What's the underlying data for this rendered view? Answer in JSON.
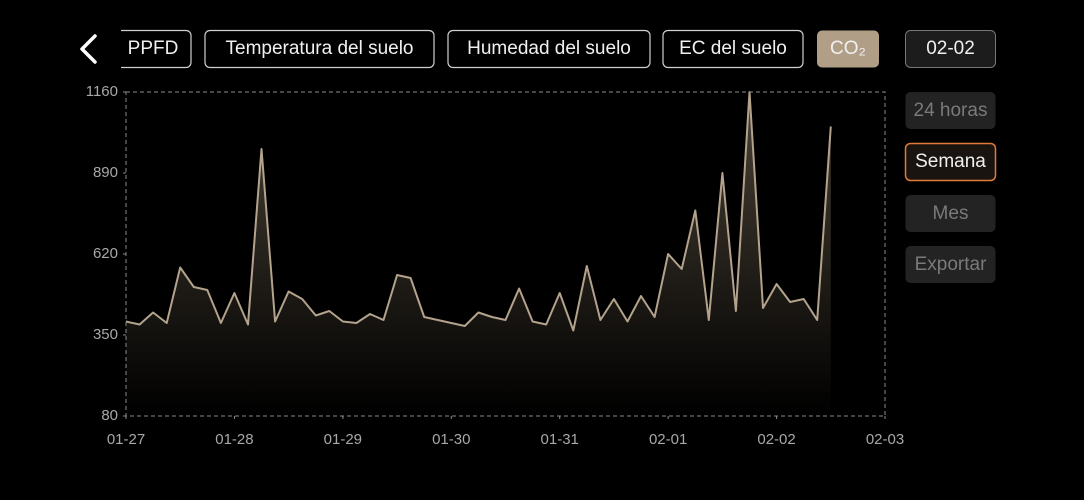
{
  "tabs": [
    "PPFD",
    "Temperatura del suelo",
    "Humedad del suelo",
    "EC del suelo",
    "CO₂"
  ],
  "date": "02-02",
  "side_buttons": [
    "24 horas",
    "Semana",
    "Mes",
    "Exportar"
  ],
  "chart_data": {
    "type": "line",
    "color": "#b3a38c",
    "x": [
      0,
      0.125,
      0.25,
      0.375,
      0.5,
      0.625,
      0.75,
      0.875,
      1,
      1.125,
      1.25,
      1.375,
      1.5,
      1.625,
      1.75,
      1.875,
      2,
      2.125,
      2.25,
      2.375,
      2.5,
      2.625,
      2.75,
      2.875,
      3,
      3.125,
      3.25,
      3.375,
      3.5,
      3.625,
      3.75,
      3.875,
      4,
      4.125,
      4.25,
      4.375,
      4.5,
      4.625,
      4.75,
      4.875,
      5,
      5.125,
      5.25,
      5.375,
      5.5,
      5.625,
      5.75,
      5.875,
      6,
      6.125,
      6.25,
      6.375,
      6.5
    ],
    "values": [
      395,
      385,
      425,
      390,
      575,
      510,
      500,
      390,
      490,
      385,
      970,
      395,
      495,
      470,
      415,
      430,
      395,
      390,
      420,
      400,
      550,
      540,
      410,
      400,
      390,
      380,
      425,
      410,
      400,
      505,
      395,
      385,
      490,
      365,
      580,
      400,
      470,
      395,
      480,
      410,
      620,
      570,
      765,
      400,
      890,
      430,
      1160,
      440,
      520,
      460,
      470,
      400,
      1045
    ],
    "xlim": [
      0,
      7
    ],
    "xticks": [
      {
        "value": 0,
        "label": "01-27"
      },
      {
        "value": 1,
        "label": "01-28"
      },
      {
        "value": 2,
        "label": "01-29"
      },
      {
        "value": 3,
        "label": "01-30"
      },
      {
        "value": 4,
        "label": "01-31"
      },
      {
        "value": 5,
        "label": "02-01"
      },
      {
        "value": 6,
        "label": "02-02"
      },
      {
        "value": 7,
        "label": "02-03"
      }
    ],
    "ylim": [
      80,
      1160
    ],
    "yticks": [
      80,
      350,
      620,
      890,
      1160
    ]
  }
}
